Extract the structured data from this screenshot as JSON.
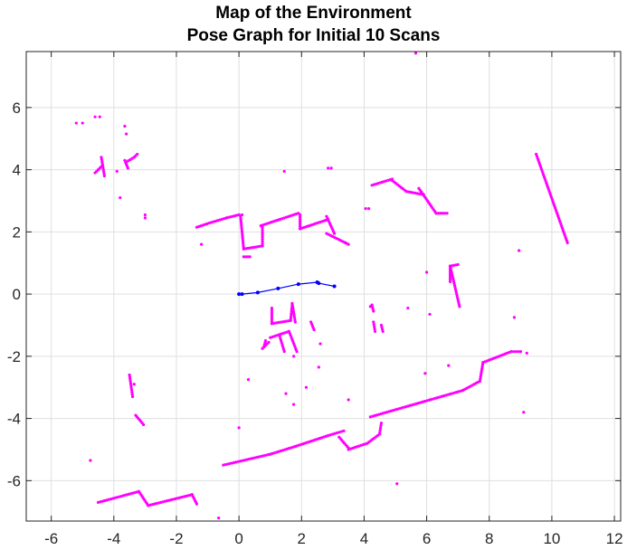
{
  "chart_data": {
    "type": "scatter",
    "title": "Map of the Environment",
    "subtitle": "Pose Graph for Initial 10 Scans",
    "xlabel": "",
    "ylabel": "",
    "xlim": [
      -6.8,
      12.2
    ],
    "ylim": [
      -7.3,
      7.8
    ],
    "x_ticks": [
      -6,
      -4,
      -2,
      0,
      2,
      4,
      6,
      8,
      10,
      12
    ],
    "y_ticks": [
      -6,
      -4,
      -2,
      0,
      2,
      4,
      6
    ],
    "grid": true,
    "series": [
      {
        "kind": "scan-points",
        "color": "#ff00ff",
        "segments": [
          [
            [
              -1.35,
              2.15
            ],
            [
              -0.9,
              2.3
            ],
            [
              -0.4,
              2.45
            ],
            [
              0.0,
              2.55
            ],
            [
              0.1,
              2.55
            ]
          ],
          [
            [
              0.05,
              2.5
            ],
            [
              0.15,
              1.45
            ]
          ],
          [
            [
              0.15,
              1.45
            ],
            [
              0.75,
              1.55
            ]
          ],
          [
            [
              0.75,
              1.55
            ],
            [
              0.75,
              2.2
            ]
          ],
          [
            [
              0.7,
              2.2
            ],
            [
              1.3,
              2.4
            ],
            [
              1.9,
              2.6
            ]
          ],
          [
            [
              1.95,
              2.55
            ],
            [
              1.95,
              2.1
            ]
          ],
          [
            [
              1.95,
              2.1
            ],
            [
              2.85,
              2.4
            ]
          ],
          [
            [
              2.8,
              2.5
            ],
            [
              3.05,
              1.95
            ]
          ],
          [
            [
              2.8,
              1.95
            ],
            [
              3.5,
              1.6
            ]
          ],
          [
            [
              0.15,
              1.2
            ],
            [
              0.35,
              1.2
            ]
          ],
          [
            [
              4.25,
              3.5
            ],
            [
              4.9,
              3.7
            ]
          ],
          [
            [
              4.9,
              3.65
            ],
            [
              5.35,
              3.3
            ]
          ],
          [
            [
              5.35,
              3.3
            ],
            [
              5.9,
              3.2
            ]
          ],
          [
            [
              5.75,
              3.4
            ],
            [
              6.3,
              2.6
            ]
          ],
          [
            [
              6.3,
              2.6
            ],
            [
              6.65,
              2.6
            ]
          ],
          [
            [
              6.75,
              0.9
            ],
            [
              7.0,
              0.95
            ]
          ],
          [
            [
              6.75,
              0.9
            ],
            [
              7.05,
              -0.4
            ]
          ],
          [
            [
              6.75,
              0.9
            ],
            [
              6.75,
              0.4
            ]
          ],
          [
            [
              9.5,
              4.5
            ],
            [
              10.5,
              1.65
            ]
          ],
          [
            [
              4.2,
              -3.95
            ],
            [
              7.15,
              -3.1
            ]
          ],
          [
            [
              7.15,
              -3.1
            ],
            [
              7.7,
              -2.8
            ]
          ],
          [
            [
              7.7,
              -2.8
            ],
            [
              7.8,
              -2.2
            ]
          ],
          [
            [
              7.8,
              -2.2
            ],
            [
              8.7,
              -1.85
            ]
          ],
          [
            [
              -0.5,
              -5.5
            ],
            [
              1.0,
              -5.15
            ]
          ],
          [
            [
              1.0,
              -5.15
            ],
            [
              1.8,
              -4.9
            ]
          ],
          [
            [
              1.8,
              -4.9
            ],
            [
              2.85,
              -4.55
            ]
          ],
          [
            [
              2.85,
              -4.55
            ],
            [
              3.35,
              -4.4
            ]
          ],
          [
            [
              3.2,
              -4.6
            ],
            [
              3.5,
              -4.95
            ]
          ],
          [
            [
              3.5,
              -5.0
            ],
            [
              4.1,
              -4.8
            ]
          ],
          [
            [
              4.1,
              -4.8
            ],
            [
              4.5,
              -4.5
            ]
          ],
          [
            [
              4.5,
              -4.45
            ],
            [
              4.55,
              -4.15
            ]
          ],
          [
            [
              -4.5,
              -6.7
            ],
            [
              -3.2,
              -6.35
            ]
          ],
          [
            [
              -3.2,
              -6.35
            ],
            [
              -2.9,
              -6.8
            ]
          ],
          [
            [
              -2.9,
              -6.8
            ],
            [
              -1.5,
              -6.45
            ]
          ],
          [
            [
              -1.5,
              -6.45
            ],
            [
              -1.35,
              -6.75
            ]
          ],
          [
            [
              1.05,
              -0.45
            ],
            [
              1.05,
              -0.95
            ]
          ],
          [
            [
              1.05,
              -0.95
            ],
            [
              1.65,
              -0.85
            ]
          ],
          [
            [
              1.65,
              -0.85
            ],
            [
              1.7,
              -0.35
            ]
          ],
          [
            [
              1.7,
              -0.3
            ],
            [
              1.8,
              -0.9
            ]
          ],
          [
            [
              1.0,
              -1.4
            ],
            [
              1.6,
              -1.2
            ]
          ],
          [
            [
              1.6,
              -1.2
            ],
            [
              1.85,
              -1.85
            ]
          ],
          [
            [
              1.3,
              -1.35
            ],
            [
              1.45,
              -1.85
            ]
          ],
          [
            [
              0.95,
              -1.55
            ],
            [
              0.75,
              -1.75
            ]
          ],
          [
            [
              0.8,
              -1.7
            ],
            [
              0.85,
              -1.5
            ]
          ],
          [
            [
              2.3,
              -0.9
            ],
            [
              2.4,
              -1.15
            ]
          ],
          [
            [
              -4.6,
              3.9
            ],
            [
              -4.4,
              4.1
            ]
          ],
          [
            [
              -4.4,
              4.4
            ],
            [
              -4.3,
              3.8
            ]
          ],
          [
            [
              -3.65,
              4.3
            ],
            [
              -3.55,
              4.05
            ]
          ],
          [
            [
              -3.6,
              4.25
            ],
            [
              -3.35,
              4.4
            ]
          ],
          [
            [
              -3.35,
              4.4
            ],
            [
              -3.25,
              4.5
            ]
          ],
          [
            [
              -3.5,
              -2.6
            ],
            [
              -3.4,
              -3.3
            ]
          ],
          [
            [
              -3.3,
              -3.9
            ],
            [
              -3.05,
              -4.2
            ]
          ],
          [
            [
              4.25,
              -0.35
            ],
            [
              4.3,
              -0.55
            ]
          ],
          [
            [
              4.3,
              -0.9
            ],
            [
              4.35,
              -1.2
            ]
          ],
          [
            [
              4.55,
              -1.0
            ],
            [
              4.6,
              -1.2
            ]
          ],
          [
            [
              8.7,
              -1.85
            ],
            [
              9.0,
              -1.85
            ]
          ]
        ],
        "isolated_points": [
          [
            -5.2,
            5.5
          ],
          [
            -5.0,
            5.5
          ],
          [
            -4.6,
            5.7
          ],
          [
            -4.45,
            5.7
          ],
          [
            -3.65,
            5.4
          ],
          [
            -3.6,
            5.15
          ],
          [
            -3.9,
            3.95
          ],
          [
            -3.8,
            3.1
          ],
          [
            -3.0,
            2.55
          ],
          [
            -3.0,
            2.45
          ],
          [
            -1.2,
            1.6
          ],
          [
            -4.75,
            -5.35
          ],
          [
            1.45,
            3.95
          ],
          [
            2.85,
            4.05
          ],
          [
            2.95,
            4.05
          ],
          [
            4.05,
            2.75
          ],
          [
            4.15,
            2.75
          ],
          [
            3.4,
            1.65
          ],
          [
            8.95,
            1.4
          ],
          [
            6.0,
            0.7
          ],
          [
            6.1,
            -0.65
          ],
          [
            5.4,
            -0.45
          ],
          [
            8.8,
            -0.75
          ],
          [
            9.0,
            -1.85
          ],
          [
            9.2,
            -1.9
          ],
          [
            5.95,
            -2.55
          ],
          [
            6.7,
            -2.3
          ],
          [
            9.1,
            -3.8
          ],
          [
            4.2,
            -0.4
          ],
          [
            2.6,
            -1.6
          ],
          [
            2.55,
            -2.35
          ],
          [
            1.75,
            -2.0
          ],
          [
            0.3,
            -2.75
          ],
          [
            0.0,
            -4.3
          ],
          [
            1.5,
            -3.2
          ],
          [
            2.15,
            -3.0
          ],
          [
            1.75,
            -3.55
          ],
          [
            3.5,
            -3.4
          ],
          [
            5.05,
            -6.1
          ],
          [
            -3.35,
            -2.9
          ],
          [
            5.65,
            7.75
          ],
          [
            -0.65,
            -7.2
          ]
        ]
      },
      {
        "kind": "pose-graph",
        "color": "#0000ff",
        "x": [
          0.0,
          0.1,
          0.6,
          1.25,
          1.9,
          2.5,
          2.55,
          3.05
        ],
        "y": [
          0.0,
          0.0,
          0.05,
          0.18,
          0.32,
          0.38,
          0.35,
          0.25
        ]
      }
    ]
  }
}
